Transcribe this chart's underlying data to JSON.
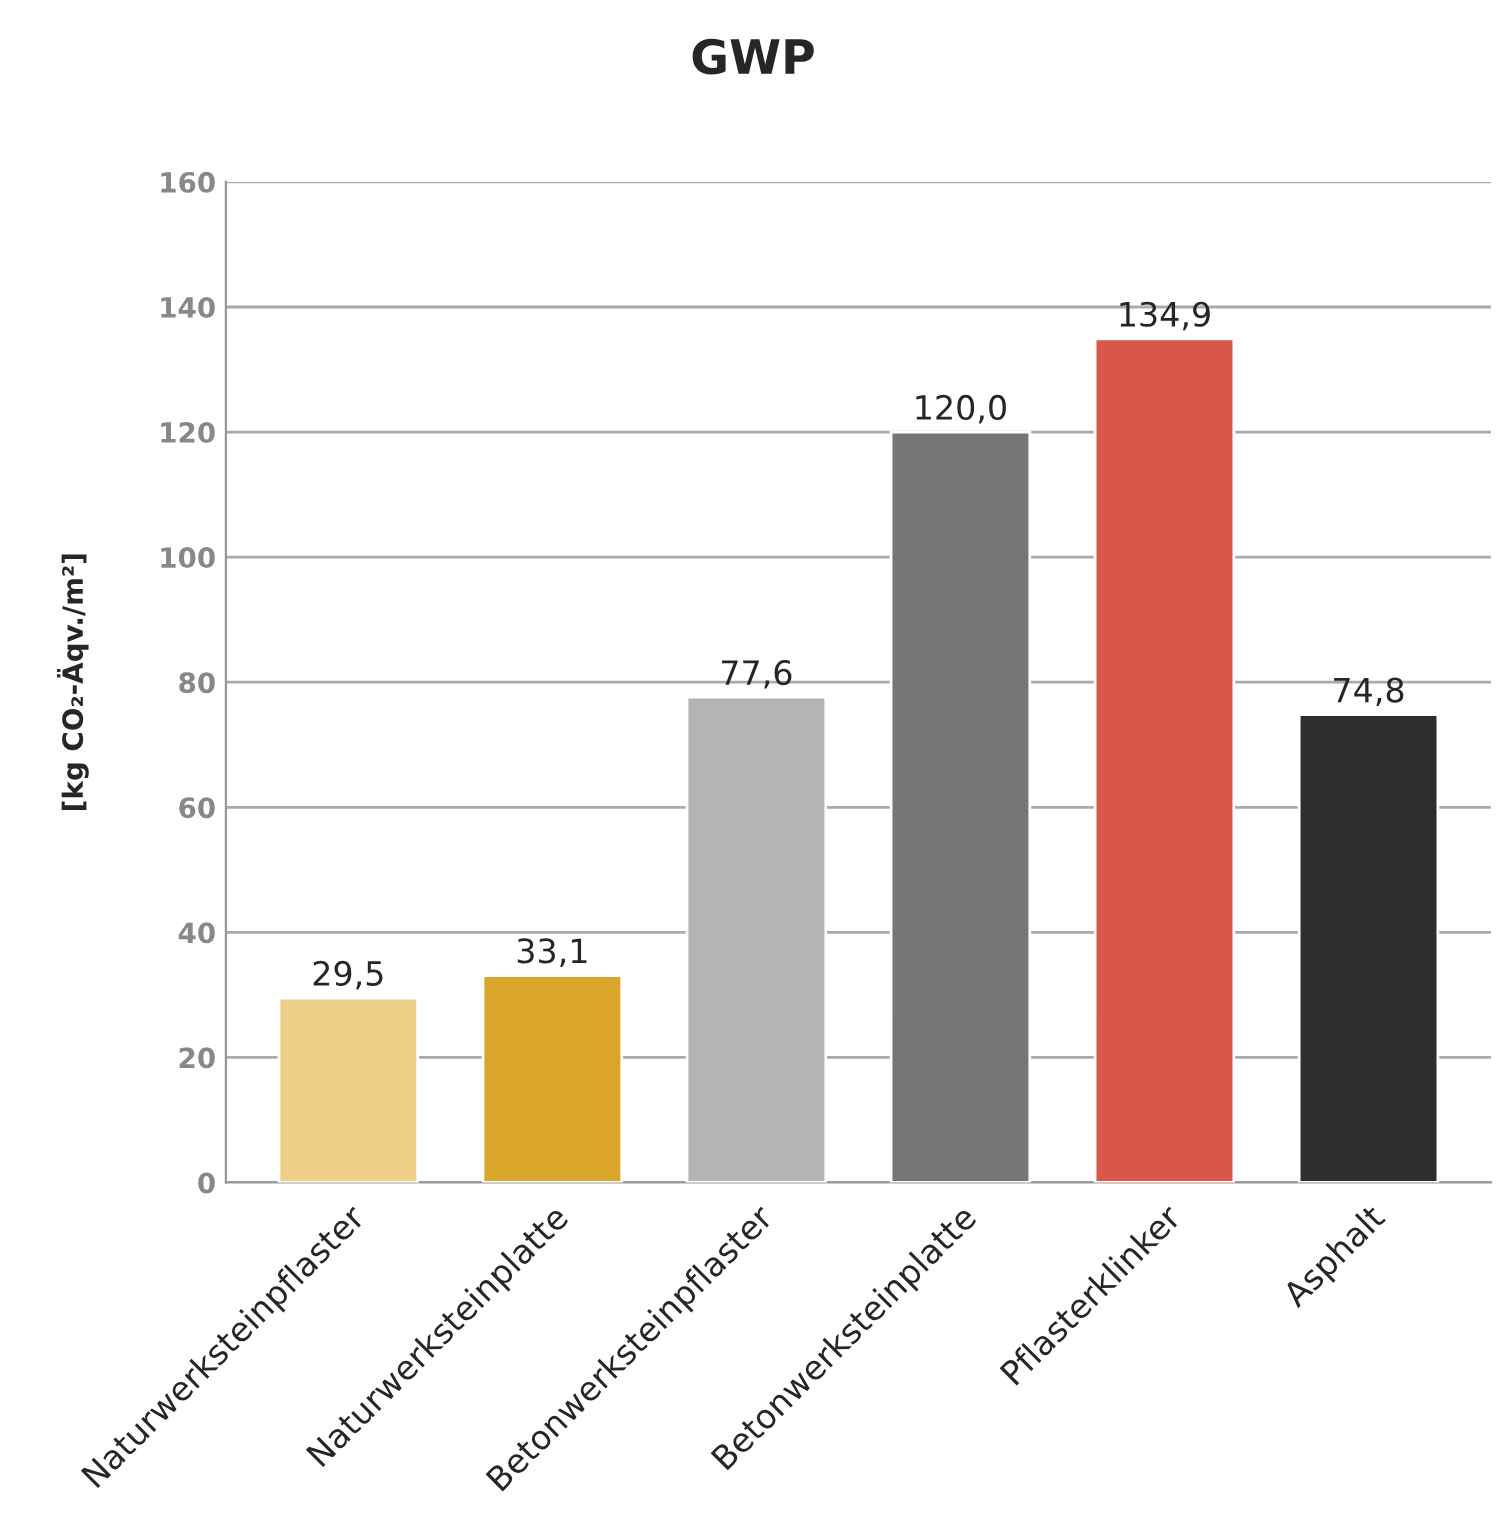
{
  "chart_data": {
    "type": "bar",
    "title": "GWP",
    "ylabel": "[kg CO₂-Äqv./m²]",
    "categories": [
      "Naturwerksteinpflaster",
      "Naturwerksteinplatte",
      "Betonwerksteinpflaster",
      "Betonwerksteinplatte",
      "Pflasterklinker",
      "Asphalt"
    ],
    "values": [
      29.5,
      33.1,
      77.6,
      120.0,
      134.9,
      74.8
    ],
    "value_labels": [
      "29,5",
      "33,1",
      "77,6",
      "120,0",
      "134,9",
      "74,8"
    ],
    "colors": [
      "#f0cf88",
      "#d9a52a",
      "#b4b4b4",
      "#767676",
      "#d9574a",
      "#2e2e2e"
    ],
    "ylim": [
      0,
      160
    ],
    "yticks": [
      0,
      20,
      40,
      60,
      80,
      100,
      120,
      140,
      160
    ],
    "grid": "y"
  }
}
